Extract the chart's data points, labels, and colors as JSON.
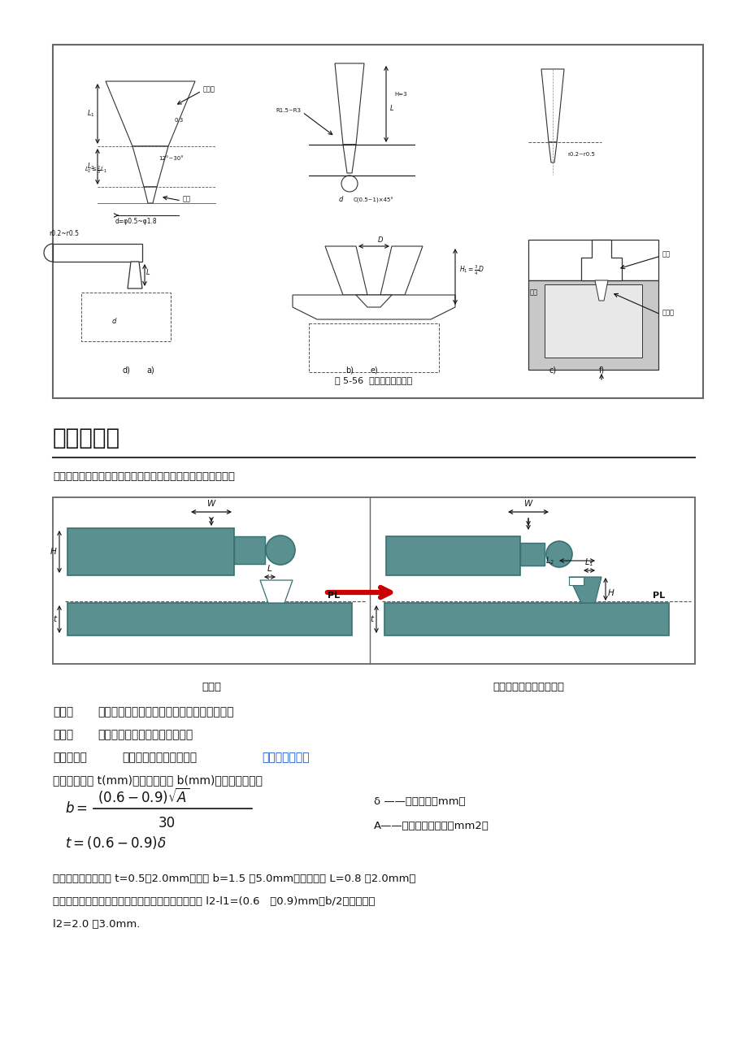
{
  "bg_color": "#ffffff",
  "page_width": 9.2,
  "page_height": 13.02,
  "caption": "图 5-56  点浇口的典型结构",
  "section_title": "二、侧浇口",
  "intro_text": "国外又称标准浇口。一般开设在分型面上，从制品的边缘进料。",
  "diagram_label_left": "侧浇口",
  "diagram_label_right": "重叠浇口（搭接式浇口）",
  "adv_label": "优点：",
  "adv_text": "易于加工、便于试模后修正，浇口去除方便。",
  "dis_label": "缺点：",
  "dis_text": "在制品的外表面留有浇口痕迹。",
  "scope_label": "适用范围：",
  "scope_text": "广泛应用于中小型制品的",
  "scope_link": "多型腔注射模。",
  "formula_intro": "其侧浇口厚度 t(mm)和测浇口宽度 b(mm)的经验公式如下",
  "delta_def": "δ ——塑料厚度，mm；",
  "A_def": "A——为塑件外表面积，mm2。",
  "note1": "对于中小型塑件深度 t=0.5～2.0mm，宽度 b=1.5 ～5.0mm，浇口长度 L=0.8 ～2.0mm；",
  "note2": "重叠浇口（侧面进料的搭接式浇口），搭接部分长度 l2-l1=(0.6   ～0.9)mm＋b/2，浇口长度",
  "note3": "l2=2.0 ～3.0mm.",
  "teal": "#5b9090",
  "teal_dark": "#3a7070",
  "arrow_red": "#cc0000",
  "black": "#111111",
  "link_color": "#1155cc",
  "gray_border": "#666666"
}
